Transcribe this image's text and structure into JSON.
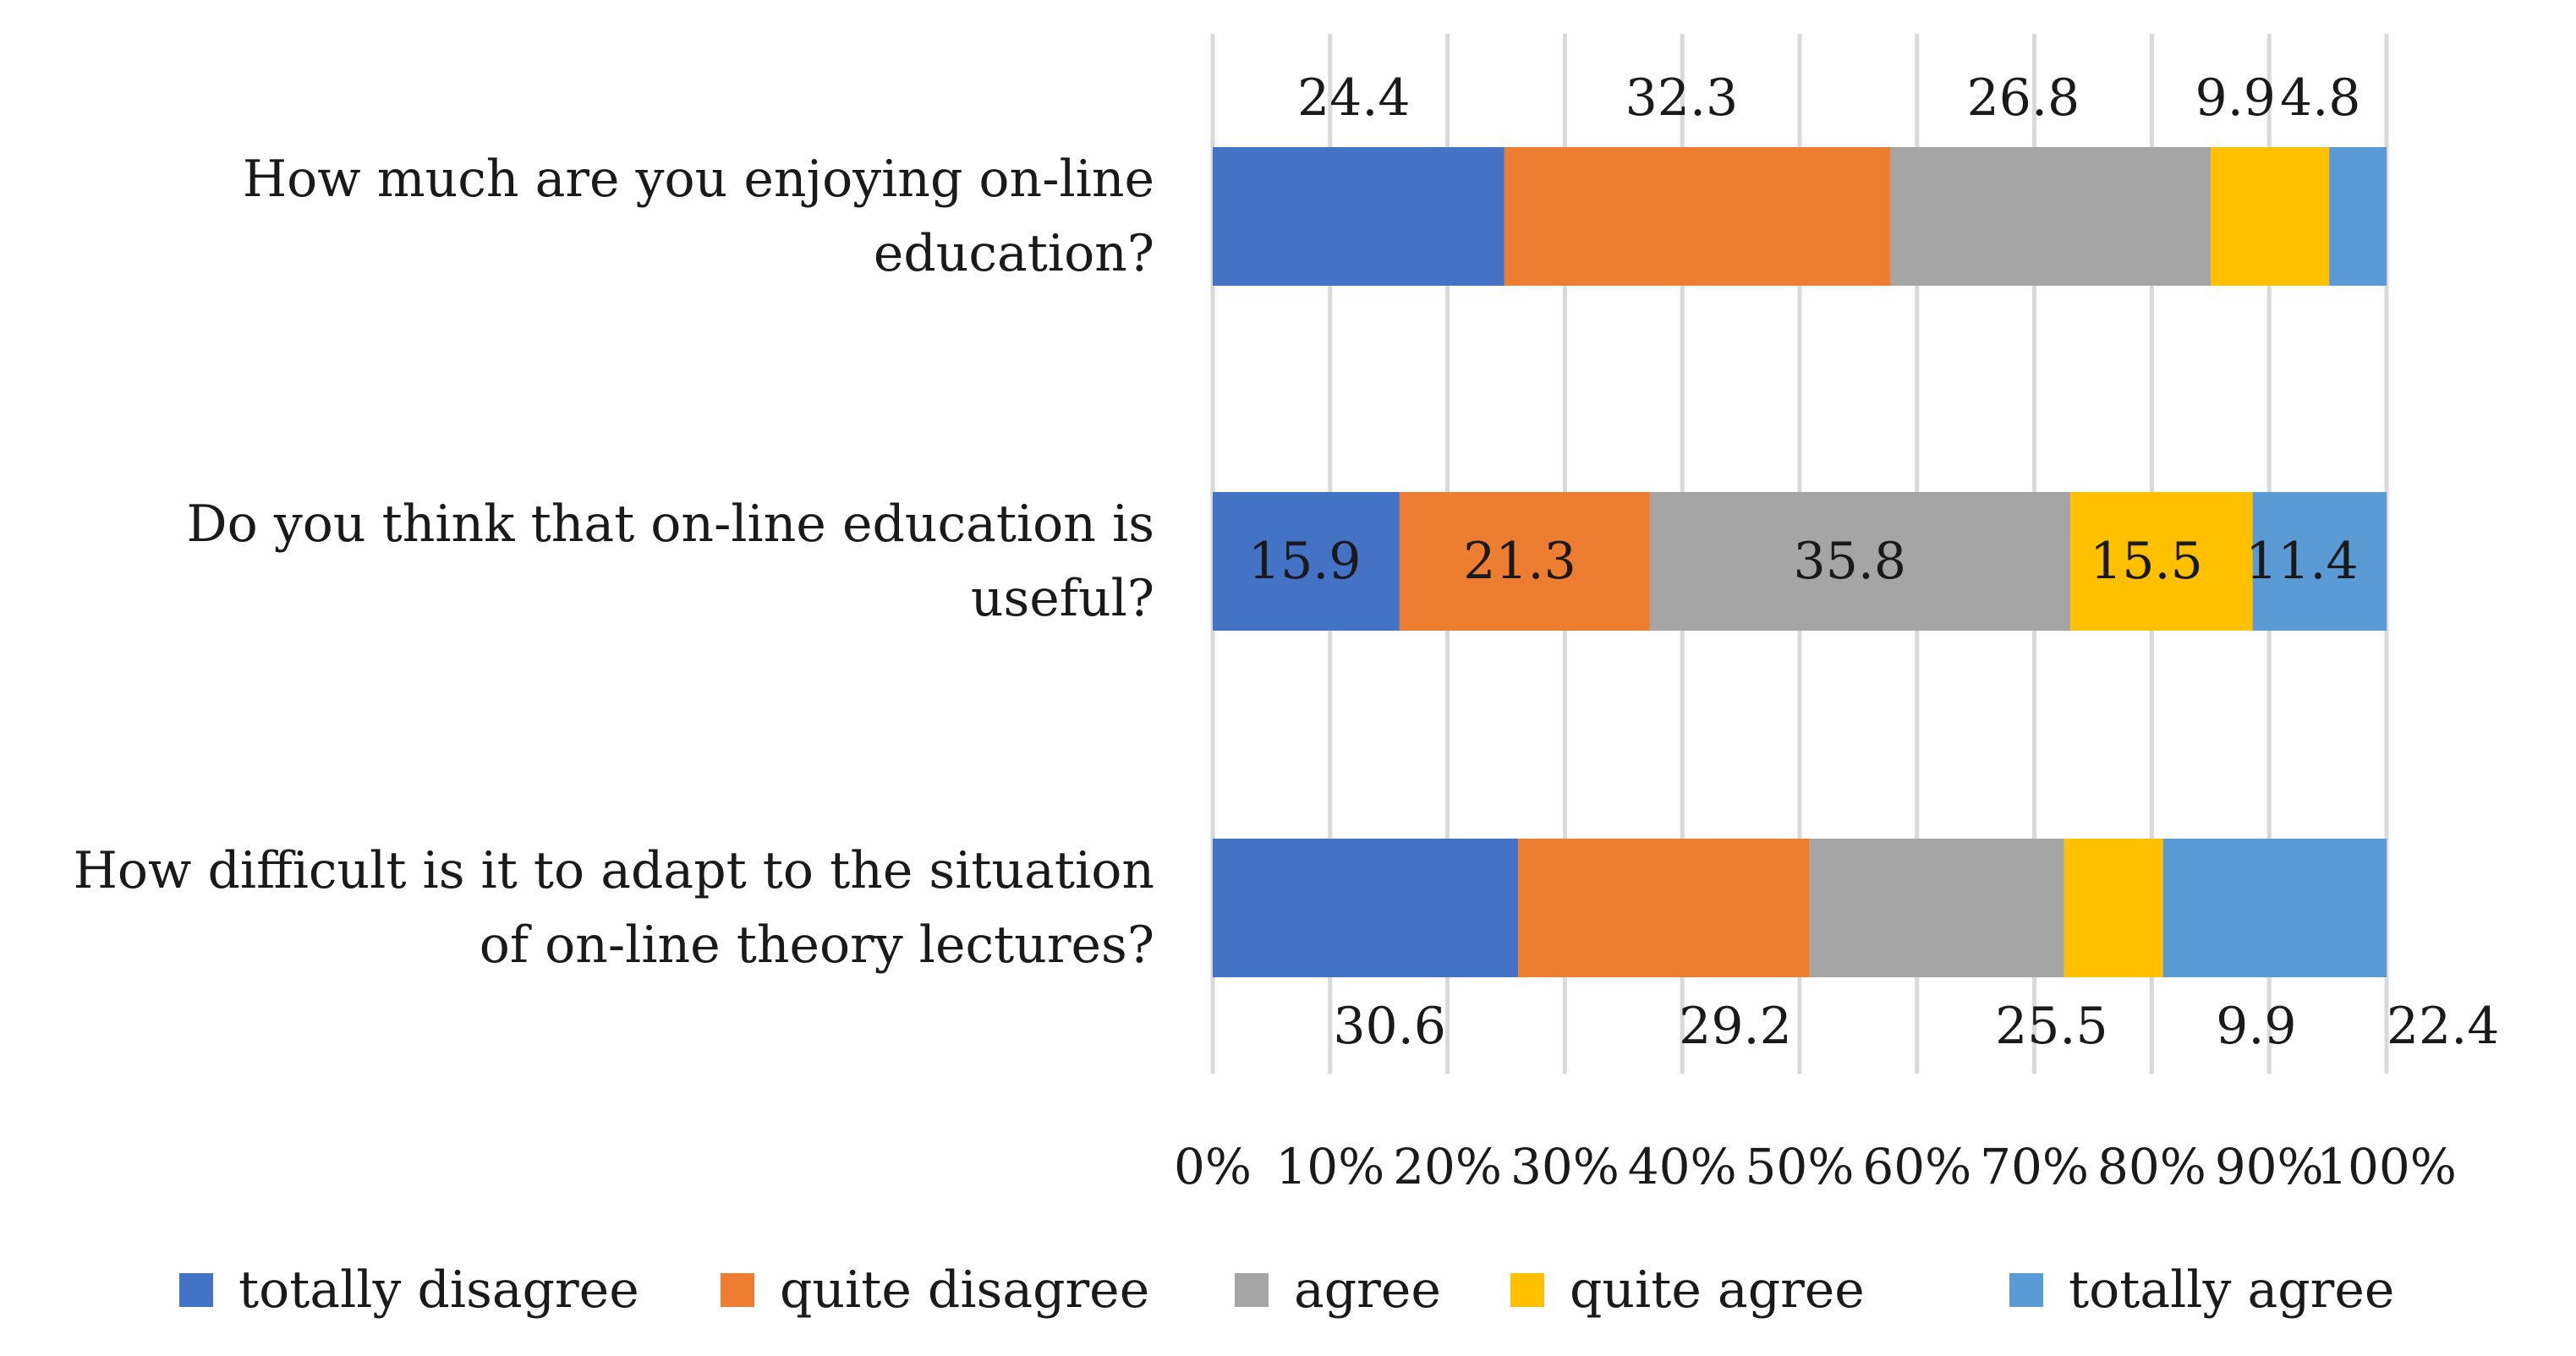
{
  "chart_data": {
    "type": "bar",
    "orientation": "horizontal",
    "stacked": "percent",
    "title": "",
    "xlabel": "",
    "ylabel": "",
    "xlim": [
      0,
      100
    ],
    "x_ticks": [
      "0%",
      "10%",
      "20%",
      "30%",
      "40%",
      "50%",
      "60%",
      "70%",
      "80%",
      "90%",
      "100%"
    ],
    "grid": true,
    "legend_position": "bottom",
    "categories": [
      [
        "How much are you enjoying on-line",
        "education?"
      ],
      [
        "Do you think that on-line education is",
        "useful?"
      ],
      [
        "How difficult is it to adapt to the situation",
        "of on-line theory lectures?"
      ]
    ],
    "series": [
      {
        "name": "totally disagree",
        "color": "#4472c4",
        "values": [
          24.4,
          15.9,
          30.6
        ],
        "labels": [
          "24.4",
          "15.9",
          "30.6"
        ]
      },
      {
        "name": "quite disagree",
        "color": "#ed7d31",
        "values": [
          32.3,
          21.3,
          29.2
        ],
        "labels": [
          "32.3",
          "21.3",
          "29.2"
        ]
      },
      {
        "name": "agree",
        "color": "#a5a5a5",
        "values": [
          26.8,
          35.8,
          25.5
        ],
        "labels": [
          "26.8",
          "35.8",
          "25.5"
        ]
      },
      {
        "name": "quite agree",
        "color": "#ffc000",
        "values": [
          9.9,
          15.5,
          9.9
        ],
        "labels": [
          "9.9",
          "15.5",
          "9.9"
        ]
      },
      {
        "name": "totally agree",
        "color": "#5b9bd5",
        "values": [
          4.8,
          11.4,
          22.4
        ],
        "labels": [
          "4.8",
          "11.4",
          "22.4"
        ]
      }
    ]
  }
}
